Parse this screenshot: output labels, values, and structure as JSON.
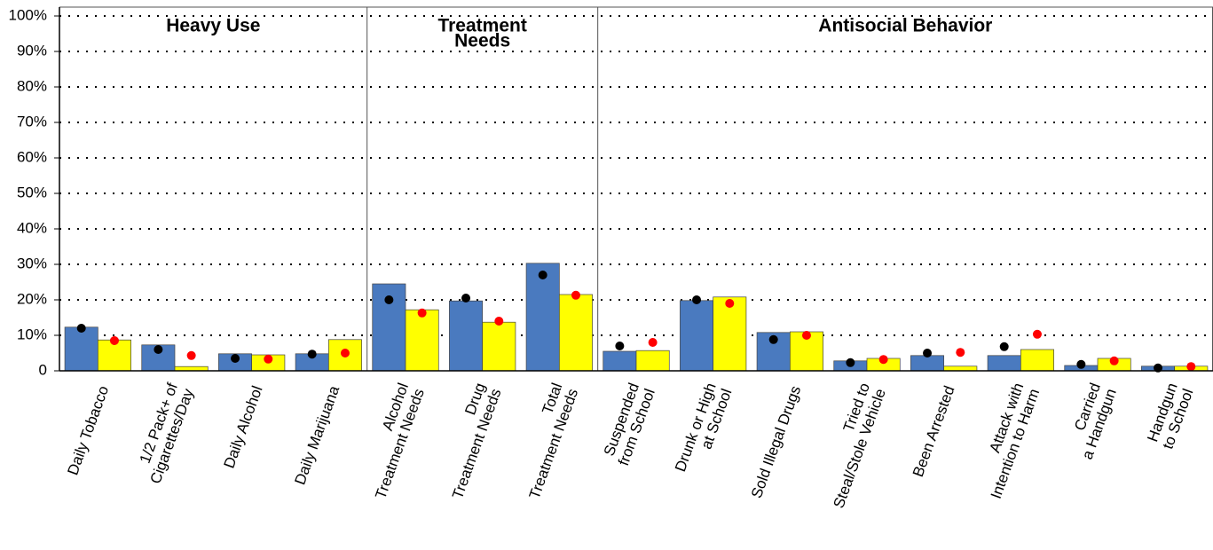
{
  "chart_data": {
    "type": "bar",
    "groups": [
      {
        "label": [
          "Heavy Use"
        ],
        "count": 4
      },
      {
        "label": [
          "Treatment",
          "Needs"
        ],
        "count": 3
      },
      {
        "label": [
          "Antisocial Behavior"
        ],
        "count": 8
      }
    ],
    "categories": [
      [
        "Daily Tobacco"
      ],
      [
        "1/2 Pack+ of",
        "Cigarettes/Day"
      ],
      [
        "Daily Alcohol"
      ],
      [
        "Daily Marijuana"
      ],
      [
        "Alcohol",
        "Treatment Needs"
      ],
      [
        "Drug",
        "Treatment Needs"
      ],
      [
        "Total",
        "Treatment Needs"
      ],
      [
        "Suspended",
        "from School"
      ],
      [
        "Drunk or High",
        "at School"
      ],
      [
        "Sold Illegal Drugs"
      ],
      [
        "Tried to",
        "Steal/Stole Vehicle"
      ],
      [
        "Been Arrested"
      ],
      [
        "Attack with",
        "Intention to Harm"
      ],
      [
        "Carried",
        "a Handgun"
      ],
      [
        "Handgun",
        "to School"
      ]
    ],
    "series": [
      {
        "color": "#4a7abf",
        "values": [
          12.3,
          7.3,
          4.8,
          4.8,
          24.5,
          19.7,
          30.3,
          5.5,
          19.8,
          10.8,
          2.8,
          4.3,
          4.3,
          1.5,
          1.3
        ]
      },
      {
        "color": "#ffff00",
        "values": [
          8.7,
          1.2,
          4.5,
          8.8,
          17.2,
          13.7,
          21.5,
          5.7,
          20.8,
          11,
          3.5,
          1.3,
          6,
          3.5,
          1.3
        ]
      }
    ],
    "points": [
      {
        "color": "#000000",
        "values": [
          12,
          6,
          3.5,
          4.7,
          20,
          20.5,
          27,
          7,
          20,
          8.8,
          2.3,
          5,
          6.8,
          1.8,
          0.8
        ]
      },
      {
        "color": "#ff0000",
        "values": [
          8.5,
          4.3,
          3.3,
          5,
          16.3,
          14,
          21.3,
          8,
          19,
          10,
          3.2,
          5.2,
          10.3,
          2.8,
          1.2
        ]
      }
    ],
    "ylim": [
      0,
      102.5
    ],
    "yticks": [
      0,
      {
        "value": 10,
        "label": "10%"
      },
      {
        "value": 20,
        "label": "20%"
      },
      {
        "value": 30,
        "label": "30%"
      },
      {
        "value": 40,
        "label": "40%"
      },
      {
        "value": 50,
        "label": "50%"
      },
      {
        "value": 60,
        "label": "60%"
      },
      {
        "value": 70,
        "label": "70%"
      },
      {
        "value": 80,
        "label": "80%"
      },
      {
        "value": 90,
        "label": "90%"
      },
      {
        "value": 100,
        "label": "100%"
      }
    ],
    "grid": true
  }
}
